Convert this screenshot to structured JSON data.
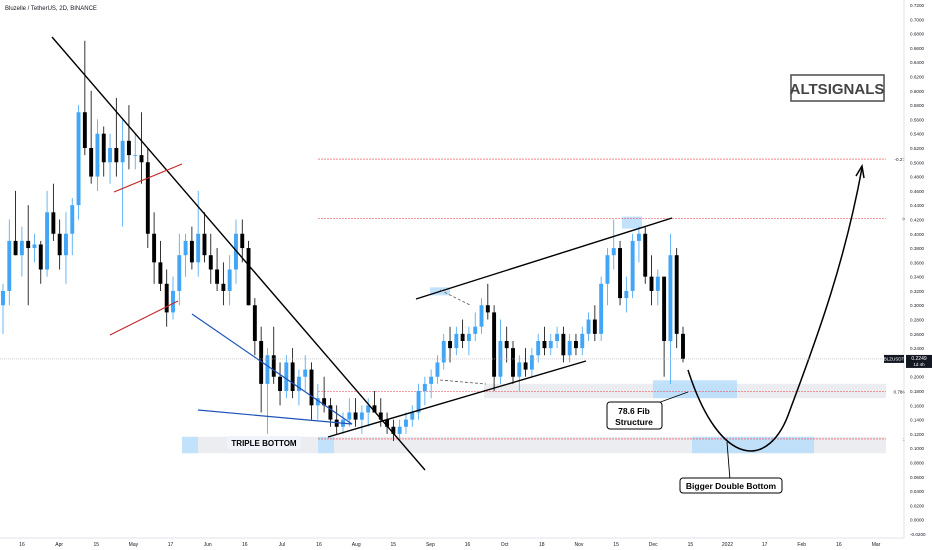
{
  "header": {
    "symbol_line": "Bluzelle / TetherUS, 2D, BINANCE"
  },
  "watermark": "ALTSIGNALS",
  "price_tag": {
    "symbol": "BLZUSDT",
    "price": "0.2249",
    "countdown": "1d 4h"
  },
  "annotations": {
    "triple_bottom": "TRIPLE BOTTOM",
    "fib_line1": "78.6 Fib",
    "fib_line2": "Structure",
    "double_bottom": "Bigger Double Bottom"
  },
  "colors": {
    "up": "#42a5f5",
    "down": "#000000",
    "fib": "#f23645",
    "zone": "#d1d4dc",
    "zone_blue": "#bbdefb",
    "trend": "#000000",
    "channel_red": "#c62828",
    "wedge_blue": "#1e53b8"
  },
  "chart_data": {
    "type": "candlestick",
    "title": "Bluzelle / TetherUS, 2D, BINANCE",
    "ylim": [
      -0.02,
      0.72
    ],
    "y_ticks": [
      "-0.0200",
      "0.0000",
      "0.0200",
      "0.0400",
      "0.0600",
      "0.0800",
      "0.1000",
      "0.1200",
      "0.1400",
      "0.1600",
      "0.1800",
      "0.2000",
      "0.2200",
      "0.2400",
      "0.2600",
      "0.2800",
      "0.3000",
      "0.3200",
      "0.3400",
      "0.3600",
      "0.3800",
      "0.4000",
      "0.4200",
      "0.4400",
      "0.4600",
      "0.4800",
      "0.5000",
      "0.5200",
      "0.5400",
      "0.5600",
      "0.5800",
      "0.6000",
      "0.6200",
      "0.6400",
      "0.6600",
      "0.6800",
      "0.7000",
      "0.7200"
    ],
    "x_ticks": [
      "16",
      "Apr",
      "15",
      "May",
      "17",
      "Jun",
      "16",
      "Jul",
      "16",
      "Aug",
      "15",
      "Sep",
      "16",
      "Oct",
      "18",
      "Nov",
      "15",
      "Dec",
      "15",
      "2022",
      "17",
      "Feb",
      "16",
      "Mar"
    ],
    "fib_levels": [
      {
        "label": "-0.27",
        "value": 0.5045
      },
      {
        "label": "0",
        "value": 0.421
      },
      {
        "label": "0.786",
        "value": 0.179
      },
      {
        "label": "1",
        "value": 0.113
      }
    ],
    "current_price": 0.2249,
    "candles": [
      [
        0.3,
        0.33,
        0.26,
        0.32
      ],
      [
        0.32,
        0.42,
        0.3,
        0.39
      ],
      [
        0.39,
        0.46,
        0.37,
        0.37
      ],
      [
        0.37,
        0.41,
        0.34,
        0.39
      ],
      [
        0.39,
        0.44,
        0.3,
        0.38
      ],
      [
        0.38,
        0.4,
        0.36,
        0.385
      ],
      [
        0.385,
        0.39,
        0.33,
        0.35
      ],
      [
        0.35,
        0.46,
        0.34,
        0.43
      ],
      [
        0.43,
        0.47,
        0.39,
        0.4
      ],
      [
        0.4,
        0.42,
        0.35,
        0.37
      ],
      [
        0.37,
        0.43,
        0.33,
        0.4
      ],
      [
        0.4,
        0.45,
        0.37,
        0.44
      ],
      [
        0.44,
        0.58,
        0.42,
        0.57
      ],
      [
        0.57,
        0.67,
        0.51,
        0.52
      ],
      [
        0.52,
        0.6,
        0.47,
        0.48
      ],
      [
        0.48,
        0.56,
        0.46,
        0.54
      ],
      [
        0.54,
        0.55,
        0.48,
        0.5
      ],
      [
        0.5,
        0.54,
        0.47,
        0.52
      ],
      [
        0.52,
        0.59,
        0.48,
        0.5
      ],
      [
        0.5,
        0.56,
        0.41,
        0.53
      ],
      [
        0.53,
        0.58,
        0.49,
        0.51
      ],
      [
        0.51,
        0.54,
        0.49,
        0.51
      ],
      [
        0.51,
        0.57,
        0.47,
        0.5
      ],
      [
        0.5,
        0.52,
        0.38,
        0.4
      ],
      [
        0.4,
        0.43,
        0.33,
        0.36
      ],
      [
        0.36,
        0.39,
        0.32,
        0.33
      ],
      [
        0.33,
        0.35,
        0.27,
        0.29
      ],
      [
        0.29,
        0.34,
        0.28,
        0.32
      ],
      [
        0.32,
        0.4,
        0.3,
        0.37
      ],
      [
        0.37,
        0.4,
        0.34,
        0.39
      ],
      [
        0.39,
        0.41,
        0.35,
        0.36
      ],
      [
        0.36,
        0.46,
        0.34,
        0.4
      ],
      [
        0.4,
        0.43,
        0.36,
        0.37
      ],
      [
        0.37,
        0.4,
        0.33,
        0.35
      ],
      [
        0.35,
        0.38,
        0.32,
        0.33
      ],
      [
        0.33,
        0.36,
        0.3,
        0.32
      ],
      [
        0.32,
        0.37,
        0.3,
        0.35
      ],
      [
        0.35,
        0.42,
        0.33,
        0.4
      ],
      [
        0.4,
        0.42,
        0.36,
        0.38
      ],
      [
        0.38,
        0.39,
        0.3,
        0.3
      ],
      [
        0.3,
        0.31,
        0.23,
        0.25
      ],
      [
        0.25,
        0.27,
        0.15,
        0.19
      ],
      [
        0.19,
        0.24,
        0.12,
        0.23
      ],
      [
        0.23,
        0.27,
        0.19,
        0.2
      ],
      [
        0.2,
        0.22,
        0.16,
        0.18
      ],
      [
        0.18,
        0.23,
        0.17,
        0.22
      ],
      [
        0.22,
        0.24,
        0.17,
        0.18
      ],
      [
        0.18,
        0.21,
        0.16,
        0.2
      ],
      [
        0.2,
        0.23,
        0.18,
        0.21
      ],
      [
        0.21,
        0.22,
        0.14,
        0.16
      ],
      [
        0.16,
        0.19,
        0.14,
        0.17
      ],
      [
        0.17,
        0.2,
        0.15,
        0.16
      ],
      [
        0.16,
        0.17,
        0.13,
        0.14
      ],
      [
        0.14,
        0.16,
        0.12,
        0.13
      ],
      [
        0.13,
        0.15,
        0.12,
        0.14
      ],
      [
        0.14,
        0.17,
        0.13,
        0.15
      ],
      [
        0.15,
        0.17,
        0.13,
        0.14
      ],
      [
        0.14,
        0.16,
        0.12,
        0.15
      ],
      [
        0.15,
        0.17,
        0.13,
        0.16
      ],
      [
        0.16,
        0.18,
        0.15,
        0.15
      ],
      [
        0.15,
        0.17,
        0.13,
        0.14
      ],
      [
        0.14,
        0.15,
        0.12,
        0.13
      ],
      [
        0.13,
        0.14,
        0.11,
        0.12
      ],
      [
        0.12,
        0.14,
        0.11,
        0.13
      ],
      [
        0.13,
        0.15,
        0.12,
        0.14
      ],
      [
        0.14,
        0.16,
        0.13,
        0.15
      ],
      [
        0.15,
        0.19,
        0.14,
        0.18
      ],
      [
        0.18,
        0.2,
        0.16,
        0.19
      ],
      [
        0.19,
        0.21,
        0.17,
        0.2
      ],
      [
        0.2,
        0.23,
        0.19,
        0.22
      ],
      [
        0.22,
        0.26,
        0.21,
        0.25
      ],
      [
        0.25,
        0.27,
        0.22,
        0.24
      ],
      [
        0.24,
        0.27,
        0.23,
        0.26
      ],
      [
        0.26,
        0.28,
        0.24,
        0.25
      ],
      [
        0.25,
        0.27,
        0.23,
        0.26
      ],
      [
        0.26,
        0.29,
        0.25,
        0.27
      ],
      [
        0.27,
        0.31,
        0.26,
        0.3
      ],
      [
        0.3,
        0.33,
        0.28,
        0.29
      ],
      [
        0.29,
        0.3,
        0.18,
        0.2
      ],
      [
        0.2,
        0.28,
        0.19,
        0.25
      ],
      [
        0.25,
        0.27,
        0.22,
        0.24
      ],
      [
        0.24,
        0.25,
        0.19,
        0.2
      ],
      [
        0.2,
        0.23,
        0.18,
        0.22
      ],
      [
        0.22,
        0.24,
        0.2,
        0.21
      ],
      [
        0.21,
        0.24,
        0.2,
        0.23
      ],
      [
        0.23,
        0.26,
        0.22,
        0.25
      ],
      [
        0.25,
        0.27,
        0.23,
        0.24
      ],
      [
        0.24,
        0.26,
        0.23,
        0.25
      ],
      [
        0.25,
        0.27,
        0.24,
        0.26
      ],
      [
        0.26,
        0.27,
        0.22,
        0.23
      ],
      [
        0.23,
        0.26,
        0.22,
        0.25
      ],
      [
        0.25,
        0.26,
        0.23,
        0.24
      ],
      [
        0.24,
        0.27,
        0.23,
        0.26
      ],
      [
        0.26,
        0.29,
        0.25,
        0.28
      ],
      [
        0.28,
        0.3,
        0.25,
        0.26
      ],
      [
        0.26,
        0.34,
        0.25,
        0.33
      ],
      [
        0.33,
        0.38,
        0.3,
        0.37
      ],
      [
        0.37,
        0.42,
        0.35,
        0.38
      ],
      [
        0.38,
        0.39,
        0.3,
        0.31
      ],
      [
        0.31,
        0.34,
        0.29,
        0.32
      ],
      [
        0.32,
        0.4,
        0.31,
        0.39
      ],
      [
        0.39,
        0.41,
        0.36,
        0.4
      ],
      [
        0.4,
        0.41,
        0.33,
        0.34
      ],
      [
        0.34,
        0.37,
        0.3,
        0.32
      ],
      [
        0.32,
        0.35,
        0.3,
        0.34
      ],
      [
        0.34,
        0.34,
        0.2,
        0.25
      ],
      [
        0.25,
        0.4,
        0.19,
        0.37
      ],
      [
        0.37,
        0.38,
        0.24,
        0.26
      ],
      [
        0.26,
        0.27,
        0.22,
        0.225
      ]
    ],
    "annotation_labels": [
      "TRIPLE BOTTOM",
      "78.6 Fib Structure",
      "Bigger Double Bottom"
    ]
  }
}
